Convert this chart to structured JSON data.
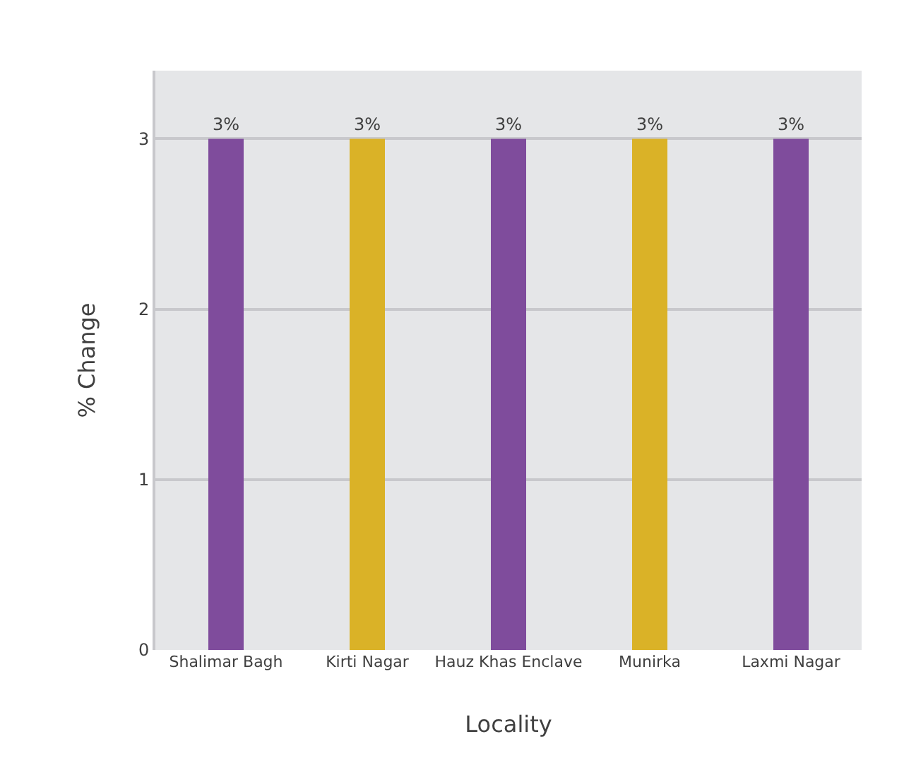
{
  "chart_data": {
    "type": "bar",
    "xlabel": "Locality",
    "ylabel": "% Change",
    "categories": [
      "Shalimar Bagh",
      "Kirti Nagar",
      "Hauz Khas Enclave",
      "Munirka",
      "Laxmi Nagar"
    ],
    "values": [
      3,
      3,
      3,
      3,
      3
    ],
    "colors": [
      "#7f4c9c",
      "#dab227",
      "#7f4c9c",
      "#dab227",
      "#7f4c9c"
    ],
    "value_labels": [
      "3%",
      "3%",
      "3%",
      "3%",
      "3%"
    ],
    "ylim": [
      0,
      3.4
    ],
    "yticks": [
      0,
      1,
      2,
      3
    ],
    "grid": "y",
    "legend": false
  }
}
